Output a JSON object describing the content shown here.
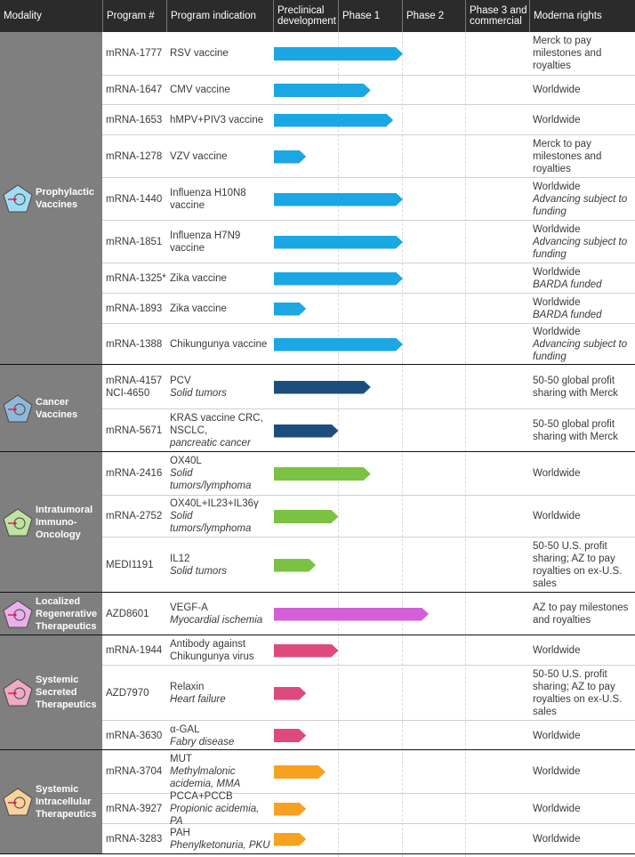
{
  "header": {
    "columns": [
      "Modality",
      "Program #",
      "Program indication",
      "Preclinical development",
      "Phase 1",
      "Phase 2",
      "Phase 3 and commercial",
      "Moderna rights"
    ]
  },
  "groups": [
    {
      "modality": "Prophylactic Vaccines",
      "icon": "syringe-pentagon-icon",
      "color": "#1ba6e4",
      "icon_color": "#9fdcf3",
      "rows": [
        {
          "program": "mRNA-1777",
          "indication": "RSV vaccine",
          "detail": "",
          "rights": "Merck to pay milestones and royalties",
          "note": "",
          "progress": 2.0
        },
        {
          "program": "mRNA-1647",
          "indication": "CMV vaccine",
          "detail": "",
          "rights": "Worldwide",
          "note": "",
          "progress": 1.5
        },
        {
          "program": "mRNA-1653",
          "indication": "hMPV+PIV3 vaccine",
          "detail": "",
          "rights": "Worldwide",
          "note": "",
          "progress": 1.85
        },
        {
          "program": "mRNA-1278",
          "indication": "VZV vaccine",
          "detail": "",
          "rights": "Merck to pay milestones and royalties",
          "note": "",
          "progress": 0.5
        },
        {
          "program": "mRNA-1440",
          "indication": "Influenza H10N8 vaccine",
          "detail": "",
          "rights": "Worldwide",
          "note": "Advancing subject to funding",
          "progress": 2.0
        },
        {
          "program": "mRNA-1851",
          "indication": "Influenza H7N9 vaccine",
          "detail": "",
          "rights": "Worldwide",
          "note": "Advancing subject to funding",
          "progress": 2.0
        },
        {
          "program": "mRNA-1325*",
          "indication": "Zika vaccine",
          "detail": "",
          "rights": "Worldwide",
          "note": "BARDA funded",
          "progress": 2.0
        },
        {
          "program": "mRNA-1893",
          "indication": "Zika vaccine",
          "detail": "",
          "rights": "Worldwide",
          "note": "BARDA funded",
          "progress": 0.5
        },
        {
          "program": "mRNA-1388",
          "indication": "Chikungunya vaccine",
          "detail": "",
          "rights": "Worldwide",
          "note": "Advancing subject to funding",
          "progress": 2.0
        }
      ]
    },
    {
      "modality": "Cancer Vaccines",
      "icon": "cancer-vaccine-pentagon-icon",
      "color": "#1c4e7d",
      "icon_color": "#8fb8d8",
      "rows": [
        {
          "program": "mRNA-4157 NCI-4650",
          "indication": "PCV",
          "detail": "Solid tumors",
          "rights": "50-50 global profit sharing with Merck",
          "note": "",
          "progress": 1.5
        },
        {
          "program": "mRNA-5671",
          "indication": "KRAS vaccine CRC, NSCLC,",
          "detail": "pancreatic cancer",
          "rights": "50-50 global profit sharing with Merck",
          "note": "",
          "progress": 1.0
        }
      ]
    },
    {
      "modality": "Intratumoral Immuno-Oncology",
      "icon": "tumor-cell-pentagon-icon",
      "color": "#7cc242",
      "icon_color": "#bfe3a0",
      "rows": [
        {
          "program": "mRNA-2416",
          "indication": "OX40L",
          "detail": "Solid tumors/lymphoma",
          "rights": "Worldwide",
          "note": "",
          "progress": 1.5
        },
        {
          "program": "mRNA-2752",
          "indication": "OX40L+IL23+IL36γ",
          "detail": "Solid tumors/lymphoma",
          "rights": "Worldwide",
          "note": "",
          "progress": 1.0
        },
        {
          "program": "MEDI1191",
          "indication": "IL12",
          "detail": "Solid tumors",
          "rights": "50-50 U.S. profit sharing; AZ to pay royalties on ex-U.S. sales",
          "note": "",
          "progress": 0.65
        }
      ]
    },
    {
      "modality": "Localized Regenerative Therapeutics",
      "icon": "regenerative-pentagon-icon",
      "color": "#d55fd8",
      "icon_color": "#e9b0ea",
      "rows": [
        {
          "program": "AZD8601",
          "indication": "VEGF-A",
          "detail": "Myocardial ischemia",
          "rights": "AZ to pay milestones and royalties",
          "note": "",
          "progress": 2.4
        }
      ]
    },
    {
      "modality": "Systemic Secreted Therapeutics",
      "icon": "person-pentagon-icon",
      "color": "#de497e",
      "icon_color": "#f0aac4",
      "rows": [
        {
          "program": "mRNA-1944",
          "indication": "Antibody against Chikungunya virus",
          "detail": "",
          "rights": "Worldwide",
          "note": "",
          "progress": 1.0
        },
        {
          "program": "AZD7970",
          "indication": "Relaxin",
          "detail": "Heart failure",
          "rights": "50-50 U.S. profit sharing; AZ to pay royalties on ex-U.S. sales",
          "note": "",
          "progress": 0.5
        },
        {
          "program": "mRNA-3630",
          "indication": "α-GAL",
          "detail": "Fabry disease",
          "rights": "Worldwide",
          "note": "",
          "progress": 0.5
        }
      ]
    },
    {
      "modality": "Systemic Intracellular Therapeutics",
      "icon": "intracellular-pentagon-icon",
      "color": "#f7a121",
      "icon_color": "#f9d29a",
      "rows": [
        {
          "program": "mRNA-3704",
          "indication": "MUT",
          "detail": "Methylmalonic acidemia, MMA",
          "rights": "Worldwide",
          "note": "",
          "progress": 0.8
        },
        {
          "program": "mRNA-3927",
          "indication": "PCCA+PCCB",
          "detail": "Propionic acidemia, PA",
          "rights": "Worldwide",
          "note": "",
          "progress": 0.5
        },
        {
          "program": "mRNA-3283",
          "indication": "PAH",
          "detail": "Phenylketonuria, PKU",
          "rights": "Worldwide",
          "note": "",
          "progress": 0.5
        }
      ]
    }
  ]
}
